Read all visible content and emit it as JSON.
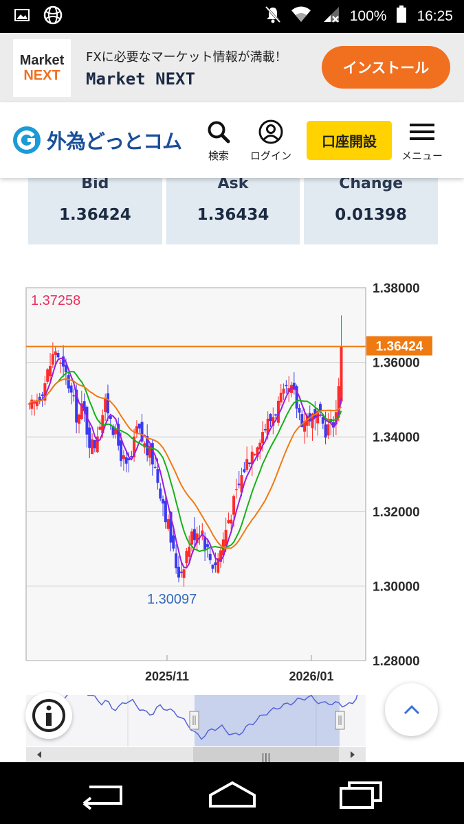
{
  "status_bar": {
    "battery": "100%",
    "time": "16:25",
    "icons": [
      "image-icon",
      "vpn-globe-icon",
      "notifications-off-icon",
      "wifi-icon",
      "signal-icon",
      "battery-icon"
    ]
  },
  "ad": {
    "logo_line1": "Market",
    "logo_line2": "NEXT",
    "tagline": "FXに必要なマーケット情報が満載！",
    "app_name": "Market NEXT",
    "install_label": "インストール",
    "colors": {
      "accent": "#f07020",
      "background": "#ececec"
    }
  },
  "header": {
    "site_name": "外為どっとコム",
    "search_label": "検索",
    "login_label": "ログイン",
    "account_button": "口座開設",
    "menu_label": "メニュー",
    "colors": {
      "brand": "#1a4f9a",
      "account_button": "#ffd200"
    }
  },
  "quote": {
    "bid_label": "Bid",
    "bid_value": "1.36424",
    "ask_label": "Ask",
    "ask_value": "1.36434",
    "change_label": "Change",
    "change_value": "0.01398"
  },
  "chart": {
    "high_label": "1.37258",
    "low_label": "1.30097",
    "current_price_label": "1.36424",
    "y_tick_labels": [
      "1.38000",
      "1.36000",
      "1.34000",
      "1.32000",
      "1.30000",
      "1.28000"
    ],
    "x_tick_labels": [
      "2025/11",
      "2026/01"
    ],
    "scrollbar_grip": "|||",
    "colors": {
      "up": "#ff2b2b",
      "down": "#3a3af0",
      "ma_short": "#9a1de0",
      "ma_mid": "#18b018",
      "ma_long": "#f07a12",
      "current_line": "#f07a12",
      "high": "#e8315f",
      "low": "#3569b8"
    }
  },
  "chart_data": {
    "type": "candlestick",
    "title": "",
    "xlabel": "",
    "ylabel": "",
    "ylim": [
      1.28,
      1.38
    ],
    "x_ticks": [
      "2025/11",
      "2026/01"
    ],
    "y_ticks": [
      1.38,
      1.36,
      1.34,
      1.32,
      1.3,
      1.28
    ],
    "current_price": 1.36424,
    "high": 1.37258,
    "low": 1.30097,
    "close_path": [
      1.347,
      1.349,
      1.352,
      1.355,
      1.36,
      1.364,
      1.358,
      1.356,
      1.35,
      1.345,
      1.348,
      1.34,
      1.337,
      1.344,
      1.348,
      1.347,
      1.34,
      1.336,
      1.331,
      1.334,
      1.342,
      1.339,
      1.336,
      1.334,
      1.328,
      1.322,
      1.315,
      1.307,
      1.303,
      1.308,
      1.313,
      1.315,
      1.316,
      1.31,
      1.306,
      1.307,
      1.312,
      1.318,
      1.322,
      1.327,
      1.332,
      1.335,
      1.338,
      1.341,
      1.343,
      1.345,
      1.348,
      1.35,
      1.352,
      1.352,
      1.347,
      1.344,
      1.346,
      1.344,
      1.345,
      1.342,
      1.343,
      1.346,
      1.364
    ]
  }
}
